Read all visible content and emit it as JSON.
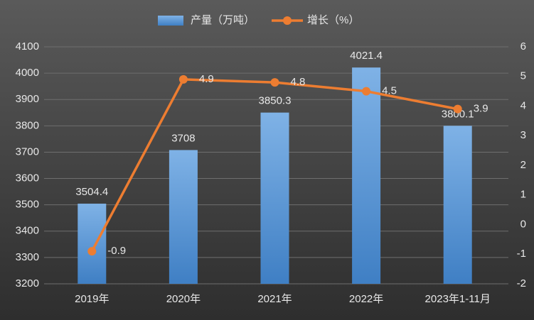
{
  "chart_data": {
    "type": "bar",
    "categories": [
      "2019年",
      "2020年",
      "2021年",
      "2022年",
      "2023年1-11月"
    ],
    "series": [
      {
        "name": "产量（万吨）",
        "color": "#5b9bd5",
        "values": [
          3504.4,
          3708,
          3850.3,
          4021.4,
          3800.1
        ]
      },
      {
        "name": "增长（%）",
        "color": "#ed7d31",
        "type": "line",
        "axis": "y2",
        "values": [
          -0.9,
          4.9,
          4.8,
          4.5,
          3.9
        ]
      }
    ],
    "ylim": [
      3200,
      4100
    ],
    "yticks": [
      3200,
      3300,
      3400,
      3500,
      3600,
      3700,
      3800,
      3900,
      4000,
      4100
    ],
    "y2lim": [
      -2,
      6
    ],
    "y2ticks": [
      -2,
      -1,
      0,
      1,
      2,
      3,
      4,
      5,
      6
    ],
    "grid": true,
    "legend": "top"
  }
}
